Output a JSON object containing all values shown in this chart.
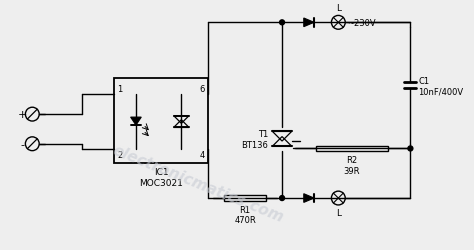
{
  "bg_color": "#eeeeee",
  "line_color": "#000000",
  "watermark": "electronicmatics.com",
  "watermark_color": "#c8ccd4",
  "components": {
    "ic1_label": "IC1\nMOC3021",
    "t1_label": "T1\nBT136",
    "r1_label": "R1\n470R",
    "r2_label": "R2\n39R",
    "c1_label": "C1\n10nF/400V",
    "v_label": "~230V",
    "l_top_label": "L",
    "l_bot_label": "L",
    "pin1": "1",
    "pin2": "2",
    "pin4": "4",
    "pin6": "6"
  }
}
